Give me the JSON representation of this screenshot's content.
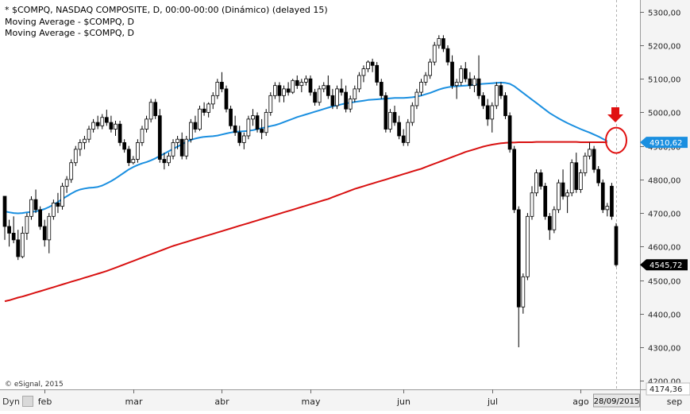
{
  "header": {
    "lines": [
      "* $COMPQ, NASDAQ COMPOSITE, D, 00:00-00:00 (Dinámico) (delayed 15)",
      "Moving Average - $COMPQ, D",
      "Moving Average - $COMPQ, D"
    ]
  },
  "copyright": "© eSignal, 2015",
  "toolbar": {
    "dyn_label": "Dyn"
  },
  "chart_data": {
    "type": "candlestick",
    "x_tick_labels": [
      "feb",
      "mar",
      "abr",
      "may",
      "jun",
      "jul",
      "ago",
      "sep"
    ],
    "x_tick_positions": [
      9,
      29,
      49,
      69,
      90,
      110,
      130,
      151
    ],
    "date_marker": "28/09/2015",
    "y_tick_labels": [
      "5300,00",
      "5200,00",
      "5100,00",
      "5000,00",
      "4900,00",
      "4800,00",
      "4700,00",
      "4600,00",
      "4500,00",
      "4400,00",
      "4300,00",
      "4200,00"
    ],
    "y_tick_values": [
      5300,
      5200,
      5100,
      5000,
      4900,
      4800,
      4700,
      4600,
      4500,
      4400,
      4300,
      4200
    ],
    "ylim": [
      4174.36,
      5335
    ],
    "bottom_value_label": "4174,36",
    "last_value": "4545,72",
    "highlight_value": "4910,62",
    "ma_fast_color": "#1a8fe0",
    "ma_slow_color": "#d81010",
    "annotation_color": "#e01010",
    "annotations": [
      "red-arrow-down",
      "red-circle-crossover"
    ],
    "candles": [
      {
        "o": 4750,
        "h": 4742,
        "l": 4620,
        "c": 4660
      },
      {
        "o": 4660,
        "h": 4680,
        "l": 4600,
        "c": 4640
      },
      {
        "o": 4640,
        "h": 4690,
        "l": 4610,
        "c": 4620
      },
      {
        "o": 4620,
        "h": 4650,
        "l": 4560,
        "c": 4570
      },
      {
        "o": 4570,
        "h": 4660,
        "l": 4565,
        "c": 4640
      },
      {
        "o": 4640,
        "h": 4700,
        "l": 4620,
        "c": 4690
      },
      {
        "o": 4690,
        "h": 4750,
        "l": 4680,
        "c": 4740
      },
      {
        "o": 4740,
        "h": 4770,
        "l": 4700,
        "c": 4710
      },
      {
        "o": 4710,
        "h": 4720,
        "l": 4650,
        "c": 4660
      },
      {
        "o": 4660,
        "h": 4680,
        "l": 4600,
        "c": 4620
      },
      {
        "o": 4620,
        "h": 4700,
        "l": 4580,
        "c": 4690
      },
      {
        "o": 4690,
        "h": 4740,
        "l": 4680,
        "c": 4730
      },
      {
        "o": 4730,
        "h": 4760,
        "l": 4700,
        "c": 4720
      },
      {
        "o": 4720,
        "h": 4790,
        "l": 4710,
        "c": 4780
      },
      {
        "o": 4780,
        "h": 4810,
        "l": 4760,
        "c": 4800
      },
      {
        "o": 4800,
        "h": 4860,
        "l": 4790,
        "c": 4850
      },
      {
        "o": 4850,
        "h": 4900,
        "l": 4840,
        "c": 4890
      },
      {
        "o": 4890,
        "h": 4920,
        "l": 4870,
        "c": 4910
      },
      {
        "o": 4910,
        "h": 4930,
        "l": 4890,
        "c": 4920
      },
      {
        "o": 4920,
        "h": 4960,
        "l": 4910,
        "c": 4950
      },
      {
        "o": 4950,
        "h": 4980,
        "l": 4940,
        "c": 4970
      },
      {
        "o": 4970,
        "h": 4990,
        "l": 4950,
        "c": 4960
      },
      {
        "o": 4960,
        "h": 4995,
        "l": 4950,
        "c": 4985
      },
      {
        "o": 4985,
        "h": 5008,
        "l": 4960,
        "c": 4970
      },
      {
        "o": 4970,
        "h": 4990,
        "l": 4940,
        "c": 4950
      },
      {
        "o": 4950,
        "h": 4975,
        "l": 4930,
        "c": 4965
      },
      {
        "o": 4965,
        "h": 4975,
        "l": 4900,
        "c": 4910
      },
      {
        "o": 4910,
        "h": 4920,
        "l": 4880,
        "c": 4890
      },
      {
        "o": 4890,
        "h": 4900,
        "l": 4840,
        "c": 4850
      },
      {
        "o": 4850,
        "h": 4870,
        "l": 4845,
        "c": 4860
      },
      {
        "o": 4860,
        "h": 4920,
        "l": 4850,
        "c": 4910
      },
      {
        "o": 4910,
        "h": 4960,
        "l": 4900,
        "c": 4950
      },
      {
        "o": 4950,
        "h": 4990,
        "l": 4940,
        "c": 4980
      },
      {
        "o": 4980,
        "h": 5040,
        "l": 4970,
        "c": 5030
      },
      {
        "o": 5030,
        "h": 5040,
        "l": 4980,
        "c": 4990
      },
      {
        "o": 4990,
        "h": 5010,
        "l": 4850,
        "c": 4860
      },
      {
        "o": 4860,
        "h": 4880,
        "l": 4830,
        "c": 4850
      },
      {
        "o": 4850,
        "h": 4880,
        "l": 4840,
        "c": 4870
      },
      {
        "o": 4870,
        "h": 4920,
        "l": 4860,
        "c": 4910
      },
      {
        "o": 4910,
        "h": 4930,
        "l": 4890,
        "c": 4920
      },
      {
        "o": 4920,
        "h": 4940,
        "l": 4860,
        "c": 4870
      },
      {
        "o": 4870,
        "h": 4930,
        "l": 4860,
        "c": 4920
      },
      {
        "o": 4920,
        "h": 4980,
        "l": 4910,
        "c": 4970
      },
      {
        "o": 4970,
        "h": 4990,
        "l": 4940,
        "c": 4950
      },
      {
        "o": 4950,
        "h": 5020,
        "l": 4945,
        "c": 5010
      },
      {
        "o": 5010,
        "h": 5030,
        "l": 4990,
        "c": 5000
      },
      {
        "o": 5000,
        "h": 5030,
        "l": 4985,
        "c": 5025
      },
      {
        "o": 5025,
        "h": 5060,
        "l": 5010,
        "c": 5050
      },
      {
        "o": 5050,
        "h": 5100,
        "l": 5040,
        "c": 5090
      },
      {
        "o": 5090,
        "h": 5120,
        "l": 5060,
        "c": 5070
      },
      {
        "o": 5070,
        "h": 5080,
        "l": 5000,
        "c": 5010
      },
      {
        "o": 5010,
        "h": 5020,
        "l": 4950,
        "c": 4960
      },
      {
        "o": 4960,
        "h": 4990,
        "l": 4930,
        "c": 4940
      },
      {
        "o": 4940,
        "h": 4960,
        "l": 4900,
        "c": 4910
      },
      {
        "o": 4910,
        "h": 4940,
        "l": 4890,
        "c": 4930
      },
      {
        "o": 4930,
        "h": 4990,
        "l": 4920,
        "c": 4980
      },
      {
        "o": 4980,
        "h": 5010,
        "l": 4960,
        "c": 4990
      },
      {
        "o": 4990,
        "h": 5000,
        "l": 4940,
        "c": 4950
      },
      {
        "o": 4950,
        "h": 4980,
        "l": 4920,
        "c": 4940
      },
      {
        "o": 4940,
        "h": 5010,
        "l": 4930,
        "c": 5000
      },
      {
        "o": 5000,
        "h": 5060,
        "l": 4990,
        "c": 5050
      },
      {
        "o": 5050,
        "h": 5090,
        "l": 5040,
        "c": 5080
      },
      {
        "o": 5080,
        "h": 5090,
        "l": 5030,
        "c": 5050
      },
      {
        "o": 5050,
        "h": 5080,
        "l": 5030,
        "c": 5070
      },
      {
        "o": 5070,
        "h": 5090,
        "l": 5050,
        "c": 5060
      },
      {
        "o": 5060,
        "h": 5100,
        "l": 5055,
        "c": 5095
      },
      {
        "o": 5095,
        "h": 5110,
        "l": 5070,
        "c": 5080
      },
      {
        "o": 5080,
        "h": 5100,
        "l": 5060,
        "c": 5090
      },
      {
        "o": 5090,
        "h": 5110,
        "l": 5080,
        "c": 5100
      },
      {
        "o": 5100,
        "h": 5110,
        "l": 5050,
        "c": 5060
      },
      {
        "o": 5060,
        "h": 5070,
        "l": 5020,
        "c": 5030
      },
      {
        "o": 5030,
        "h": 5080,
        "l": 5020,
        "c": 5070
      },
      {
        "o": 5070,
        "h": 5090,
        "l": 5060,
        "c": 5080
      },
      {
        "o": 5080,
        "h": 5110,
        "l": 5040,
        "c": 5050
      },
      {
        "o": 5050,
        "h": 5070,
        "l": 5010,
        "c": 5020
      },
      {
        "o": 5020,
        "h": 5080,
        "l": 5010,
        "c": 5070
      },
      {
        "o": 5070,
        "h": 5100,
        "l": 5050,
        "c": 5060
      },
      {
        "o": 5060,
        "h": 5080,
        "l": 5000,
        "c": 5010
      },
      {
        "o": 5010,
        "h": 5050,
        "l": 5000,
        "c": 5040
      },
      {
        "o": 5040,
        "h": 5080,
        "l": 5030,
        "c": 5070
      },
      {
        "o": 5070,
        "h": 5120,
        "l": 5060,
        "c": 5110
      },
      {
        "o": 5110,
        "h": 5140,
        "l": 5090,
        "c": 5130
      },
      {
        "o": 5130,
        "h": 5155,
        "l": 5120,
        "c": 5150
      },
      {
        "o": 5150,
        "h": 5160,
        "l": 5120,
        "c": 5140
      },
      {
        "o": 5140,
        "h": 5150,
        "l": 5080,
        "c": 5090
      },
      {
        "o": 5090,
        "h": 5100,
        "l": 5040,
        "c": 5050
      },
      {
        "o": 5050,
        "h": 5060,
        "l": 4940,
        "c": 4950
      },
      {
        "o": 4950,
        "h": 5010,
        "l": 4940,
        "c": 5000
      },
      {
        "o": 5000,
        "h": 5020,
        "l": 4960,
        "c": 4970
      },
      {
        "o": 4970,
        "h": 4990,
        "l": 4920,
        "c": 4930
      },
      {
        "o": 4930,
        "h": 4950,
        "l": 4900,
        "c": 4910
      },
      {
        "o": 4910,
        "h": 4980,
        "l": 4900,
        "c": 4970
      },
      {
        "o": 4970,
        "h": 5030,
        "l": 4960,
        "c": 5020
      },
      {
        "o": 5020,
        "h": 5070,
        "l": 5010,
        "c": 5060
      },
      {
        "o": 5060,
        "h": 5100,
        "l": 5050,
        "c": 5090
      },
      {
        "o": 5090,
        "h": 5120,
        "l": 5080,
        "c": 5110
      },
      {
        "o": 5110,
        "h": 5160,
        "l": 5100,
        "c": 5150
      },
      {
        "o": 5150,
        "h": 5210,
        "l": 5140,
        "c": 5200
      },
      {
        "o": 5200,
        "h": 5230,
        "l": 5190,
        "c": 5220
      },
      {
        "o": 5220,
        "h": 5230,
        "l": 5180,
        "c": 5190
      },
      {
        "o": 5190,
        "h": 5200,
        "l": 5140,
        "c": 5150
      },
      {
        "o": 5150,
        "h": 5170,
        "l": 5070,
        "c": 5080
      },
      {
        "o": 5080,
        "h": 5100,
        "l": 5040,
        "c": 5090
      },
      {
        "o": 5090,
        "h": 5140,
        "l": 5080,
        "c": 5130
      },
      {
        "o": 5130,
        "h": 5150,
        "l": 5090,
        "c": 5100
      },
      {
        "o": 5100,
        "h": 5120,
        "l": 5070,
        "c": 5080
      },
      {
        "o": 5080,
        "h": 5110,
        "l": 5060,
        "c": 5100
      },
      {
        "o": 5100,
        "h": 5170,
        "l": 5040,
        "c": 5050
      },
      {
        "o": 5050,
        "h": 5060,
        "l": 5010,
        "c": 5020
      },
      {
        "o": 5020,
        "h": 5040,
        "l": 4960,
        "c": 4980
      },
      {
        "o": 4980,
        "h": 5030,
        "l": 4940,
        "c": 5020
      },
      {
        "o": 5020,
        "h": 5090,
        "l": 5010,
        "c": 5080
      },
      {
        "o": 5080,
        "h": 5090,
        "l": 5040,
        "c": 5050
      },
      {
        "o": 5050,
        "h": 5060,
        "l": 4980,
        "c": 4990
      },
      {
        "o": 4990,
        "h": 5000,
        "l": 4880,
        "c": 4890
      },
      {
        "o": 4890,
        "h": 4900,
        "l": 4700,
        "c": 4710
      },
      {
        "o": 4710,
        "h": 4720,
        "l": 4300,
        "c": 4420
      },
      {
        "o": 4420,
        "h": 4520,
        "l": 4400,
        "c": 4510
      },
      {
        "o": 4510,
        "h": 4700,
        "l": 4500,
        "c": 4690
      },
      {
        "o": 4690,
        "h": 4780,
        "l": 4680,
        "c": 4760
      },
      {
        "o": 4760,
        "h": 4830,
        "l": 4750,
        "c": 4820
      },
      {
        "o": 4820,
        "h": 4830,
        "l": 4770,
        "c": 4780
      },
      {
        "o": 4780,
        "h": 4790,
        "l": 4680,
        "c": 4690
      },
      {
        "o": 4690,
        "h": 4700,
        "l": 4620,
        "c": 4650
      },
      {
        "o": 4650,
        "h": 4720,
        "l": 4640,
        "c": 4710
      },
      {
        "o": 4710,
        "h": 4800,
        "l": 4700,
        "c": 4790
      },
      {
        "o": 4790,
        "h": 4830,
        "l": 4740,
        "c": 4750
      },
      {
        "o": 4750,
        "h": 4770,
        "l": 4700,
        "c": 4760
      },
      {
        "o": 4760,
        "h": 4860,
        "l": 4750,
        "c": 4850
      },
      {
        "o": 4850,
        "h": 4880,
        "l": 4760,
        "c": 4770
      },
      {
        "o": 4770,
        "h": 4830,
        "l": 4760,
        "c": 4820
      },
      {
        "o": 4820,
        "h": 4880,
        "l": 4810,
        "c": 4870
      },
      {
        "o": 4870,
        "h": 4910,
        "l": 4860,
        "c": 4890
      },
      {
        "o": 4890,
        "h": 4900,
        "l": 4820,
        "c": 4830
      },
      {
        "o": 4830,
        "h": 4840,
        "l": 4780,
        "c": 4790
      },
      {
        "o": 4790,
        "h": 4800,
        "l": 4700,
        "c": 4710
      },
      {
        "o": 4710,
        "h": 4730,
        "l": 4690,
        "c": 4720
      },
      {
        "o": 4780,
        "h": 4790,
        "l": 4680,
        "c": 4690
      },
      {
        "o": 4660,
        "h": 4670,
        "l": 4540,
        "c": 4545.72
      }
    ],
    "ma_fast": [
      4705,
      4702,
      4700,
      4699,
      4700,
      4702,
      4703,
      4705,
      4708,
      4712,
      4718,
      4725,
      4733,
      4742,
      4750,
      4758,
      4765,
      4770,
      4773,
      4775,
      4776,
      4778,
      4782,
      4788,
      4795,
      4803,
      4812,
      4821,
      4830,
      4837,
      4843,
      4848,
      4852,
      4857,
      4863,
      4870,
      4877,
      4884,
      4891,
      4898,
      4905,
      4912,
      4918,
      4922,
      4925,
      4927,
      4928,
      4929,
      4931,
      4934,
      4937,
      4940,
      4942,
      4943,
      4944,
      4945,
      4947,
      4950,
      4953,
      4956,
      4959,
      4962,
      4966,
      4971,
      4976,
      4981,
      4986,
      4990,
      4994,
      4998,
      5002,
      5006,
      5010,
      5014,
      5018,
      5021,
      5024,
      5027,
      5029,
      5031,
      5033,
      5035,
      5037,
      5038,
      5039,
      5040,
      5041,
      5042,
      5043,
      5043,
      5043,
      5044,
      5045,
      5047,
      5050,
      5054,
      5058,
      5063,
      5068,
      5072,
      5075,
      5077,
      5078,
      5079,
      5080,
      5081,
      5082,
      5084,
      5085,
      5086,
      5087,
      5088,
      5089,
      5088,
      5085,
      5078,
      5068,
      5058,
      5048,
      5038,
      5028,
      5018,
      5008,
      4998,
      4990,
      4982,
      4975,
      4968,
      4962,
      4956,
      4950,
      4945,
      4940,
      4934,
      4928,
      4921,
      4914
    ],
    "ma_slow": [
      4437,
      4440,
      4444,
      4448,
      4451,
      4455,
      4459,
      4463,
      4467,
      4471,
      4475,
      4479,
      4483,
      4487,
      4491,
      4495,
      4499,
      4503,
      4507,
      4511,
      4515,
      4519,
      4523,
      4527,
      4532,
      4537,
      4542,
      4547,
      4552,
      4557,
      4562,
      4567,
      4572,
      4577,
      4582,
      4587,
      4592,
      4597,
      4602,
      4606,
      4610,
      4614,
      4618,
      4622,
      4626,
      4630,
      4634,
      4638,
      4642,
      4646,
      4650,
      4654,
      4658,
      4662,
      4666,
      4670,
      4674,
      4678,
      4682,
      4686,
      4690,
      4694,
      4698,
      4702,
      4706,
      4710,
      4714,
      4718,
      4722,
      4726,
      4730,
      4734,
      4738,
      4742,
      4747,
      4752,
      4757,
      4762,
      4767,
      4772,
      4776,
      4780,
      4784,
      4788,
      4792,
      4796,
      4800,
      4804,
      4808,
      4812,
      4816,
      4820,
      4824,
      4828,
      4832,
      4837,
      4842,
      4847,
      4852,
      4857,
      4862,
      4867,
      4872,
      4877,
      4882,
      4886,
      4890,
      4894,
      4898,
      4901,
      4904,
      4906,
      4908,
      4909,
      4910,
      4910,
      4911,
      4911,
      4911,
      4911,
      4912,
      4912,
      4912,
      4912,
      4912,
      4912,
      4912,
      4912,
      4912,
      4912,
      4911,
      4911,
      4911,
      4911,
      4911,
      4911,
      4910.62
    ]
  }
}
